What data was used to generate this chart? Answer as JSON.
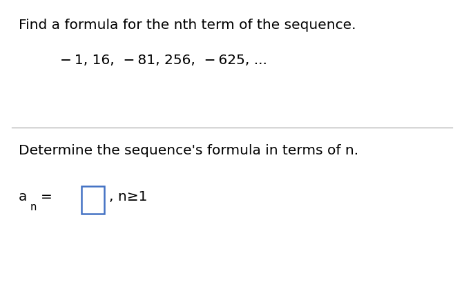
{
  "background_color": "#ffffff",
  "title_text": "Find a formula for the nth term of the sequence.",
  "sequence_text": "− 1, 16,  − 81, 256,  − 625, ...",
  "determine_text": "Determine the sequence's formula in terms of n.",
  "constraint_text": ", n≥1",
  "title_fontsize": 14.5,
  "sequence_fontsize": 14.5,
  "determine_fontsize": 14.5,
  "formula_fontsize": 14.5,
  "subscript_fontsize": 10.5,
  "box_color": "#4472c4",
  "text_color": "#000000",
  "divider_color": "#aaaaaa",
  "font_family": "DejaVu Sans"
}
